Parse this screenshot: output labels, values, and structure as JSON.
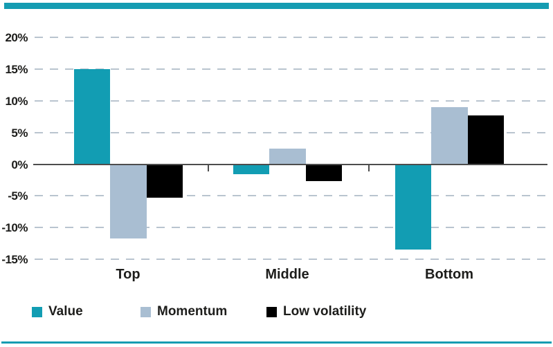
{
  "decorations": {
    "top_band_color": "#149cb2",
    "bottom_rule_color": "#149cb2"
  },
  "chart_data": {
    "type": "bar",
    "title": "",
    "categories": [
      "Top",
      "Middle",
      "Bottom"
    ],
    "series": [
      {
        "name": "Value",
        "color": "#129db3",
        "values": [
          15.0,
          -1.6,
          -13.5
        ]
      },
      {
        "name": "Momentum",
        "color": "#a9bed2",
        "values": [
          -11.7,
          2.5,
          9.0
        ]
      },
      {
        "name": "Low volatility",
        "color": "#000000",
        "values": [
          -5.3,
          -2.7,
          7.7
        ]
      }
    ],
    "xlabel": "",
    "ylabel": "",
    "ylim": [
      -15,
      20
    ],
    "y_tick_labels": [
      "20%",
      "15%",
      "10%",
      "5%",
      "0%",
      "-5%",
      "-10%",
      "-15%"
    ],
    "y_tick_values": [
      20,
      15,
      10,
      5,
      0,
      -5,
      -10,
      -15
    ],
    "grid": "horizontal dashed, zero line solid",
    "grid_color": "#b9c4cf",
    "axis_color": "#4d4d4d",
    "legend_position": "bottom"
  }
}
